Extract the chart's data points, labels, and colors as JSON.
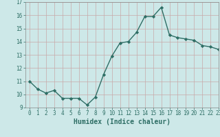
{
  "title": "",
  "xlabel": "Humidex (Indice chaleur)",
  "ylabel": "",
  "x_values": [
    0,
    1,
    2,
    3,
    4,
    5,
    6,
    7,
    8,
    9,
    10,
    11,
    12,
    13,
    14,
    15,
    16,
    17,
    18,
    19,
    20,
    21,
    22,
    23
  ],
  "y_values": [
    11.0,
    10.4,
    10.1,
    10.3,
    9.7,
    9.7,
    9.7,
    9.2,
    9.8,
    11.5,
    12.9,
    13.9,
    14.0,
    14.7,
    15.9,
    15.9,
    16.6,
    14.5,
    14.3,
    14.2,
    14.1,
    13.7,
    13.6,
    13.4
  ],
  "line_color": "#2e6e65",
  "marker": "D",
  "marker_size": 2.2,
  "background_color": "#cde8e8",
  "grid_color": "#c8a8a8",
  "ylim": [
    9,
    17
  ],
  "xlim": [
    -0.5,
    23
  ],
  "yticks": [
    9,
    10,
    11,
    12,
    13,
    14,
    15,
    16,
    17
  ],
  "xticks": [
    0,
    1,
    2,
    3,
    4,
    5,
    6,
    7,
    8,
    9,
    10,
    11,
    12,
    13,
    14,
    15,
    16,
    17,
    18,
    19,
    20,
    21,
    22,
    23
  ],
  "tick_fontsize": 5.5,
  "label_fontsize": 7.0,
  "line_width": 1.0
}
